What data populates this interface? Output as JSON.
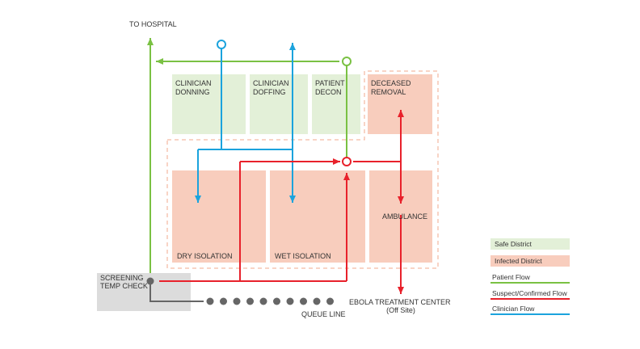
{
  "colors": {
    "safe_fill": "#e3f0d8",
    "infected_fill": "#f8cdbd",
    "patient": "#7ac143",
    "suspect": "#e8212b",
    "clinician": "#1ba3dd",
    "screening_fill": "#dcdcdc",
    "queue_gray": "#666666",
    "dash": "#f2a98e"
  },
  "labels": {
    "to_hospital": "TO HOSPITAL",
    "clinician_donning": [
      "CLINICIAN",
      "DONNING"
    ],
    "clinician_doffing": [
      "CLINICIAN",
      "DOFFING"
    ],
    "patient_decon": [
      "PATIENT",
      "DECON"
    ],
    "deceased_removal": [
      "DECEASED",
      "REMOVAL"
    ],
    "ambulance": "AMBULANCE",
    "dry_isolation": "DRY ISOLATION",
    "wet_isolation": "WET ISOLATION",
    "screening": [
      "SCREENING",
      "TEMP CHECK"
    ],
    "queue_line": "QUEUE LINE",
    "etc": [
      "EBOLA TREATMENT CENTER",
      "(Off Site)"
    ]
  },
  "legend": {
    "safe": "Safe District",
    "infected": "Infected District",
    "patient_flow": "Patient Flow",
    "suspect_flow": "Suspect/Confirmed Flow",
    "clinician_flow": "Clinician Flow"
  },
  "queue_dot_count": 10
}
